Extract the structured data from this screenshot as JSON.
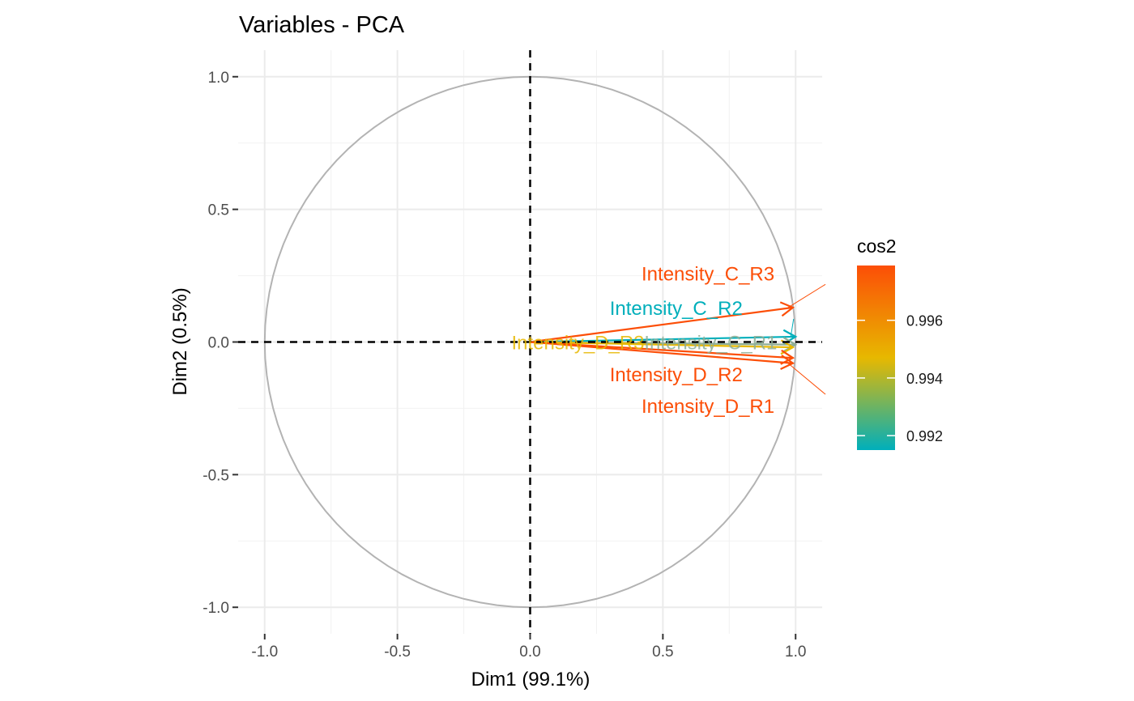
{
  "chart_data": {
    "type": "scatter",
    "subtype": "pca-variable-correlation-circle",
    "title": "Variables - PCA",
    "xlabel": "Dim1 (99.1%)",
    "ylabel": "Dim2 (0.5%)",
    "xlim": [
      -1.1,
      1.1
    ],
    "ylim": [
      -1.1,
      1.1
    ],
    "x_ticks": [
      -1.0,
      -0.5,
      0.0,
      0.5,
      1.0
    ],
    "x_tick_labels": [
      "-1.0",
      "-0.5",
      "0.0",
      "0.5",
      "1.0"
    ],
    "y_ticks": [
      1.0,
      0.5,
      0.0,
      -0.5,
      -1.0
    ],
    "y_tick_labels": [
      "1.0",
      "0.5",
      "0.0",
      "-0.5",
      "-1.0"
    ],
    "grid": true,
    "unit_circle": true,
    "reference_lines": [
      0,
      0
    ],
    "variables": [
      {
        "name": "Intensity_C_R3",
        "x": 0.99,
        "y": 0.13,
        "cos2": 0.9978,
        "color": "#FC4E07",
        "label_x": 0.67,
        "label_y": 0.26
      },
      {
        "name": "Intensity_C_R2",
        "x": 1.0,
        "y": 0.02,
        "cos2": 0.9918,
        "color": "#00AFBB",
        "label_x": 0.55,
        "label_y": 0.13
      },
      {
        "name": "Intensity_C_R1",
        "x": 1.0,
        "y": -0.01,
        "cos2": 0.993,
        "color": "#8FAE96",
        "label_x": 0.68,
        "label_y": 0.0
      },
      {
        "name": "Intensity_D_R3",
        "x": 0.99,
        "y": -0.02,
        "cos2": 0.995,
        "color": "#E7B800",
        "label_x": 0.18,
        "label_y": 0.0
      },
      {
        "name": "Intensity_D_R2",
        "x": 0.99,
        "y": -0.06,
        "cos2": 0.9975,
        "color": "#FC4E07",
        "label_x": 0.55,
        "label_y": -0.12
      },
      {
        "name": "Intensity_D_R1",
        "x": 0.99,
        "y": -0.08,
        "cos2": 0.9976,
        "color": "#FC4E07",
        "label_x": 0.67,
        "label_y": -0.24
      }
    ],
    "legend": {
      "title": "cos2",
      "position": "right",
      "type": "gradient",
      "range": [
        0.9915,
        0.9979
      ],
      "breaks": [
        0.996,
        0.994,
        0.992
      ],
      "break_labels": [
        "0.996",
        "0.994",
        "0.992"
      ],
      "colors": [
        "#00AFBB",
        "#E7B800",
        "#FC4E07"
      ]
    }
  }
}
